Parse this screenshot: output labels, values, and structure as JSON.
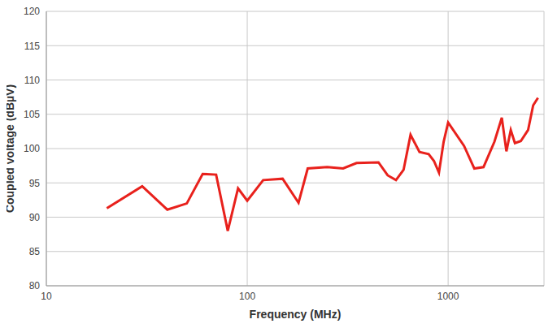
{
  "chart_data": {
    "type": "line",
    "x_label": "Frequency (MHz)",
    "y_label": "Coupled voltage (dBµV)",
    "x": [
      20,
      30,
      40,
      50,
      60,
      70,
      80,
      90,
      100,
      120,
      150,
      180,
      200,
      250,
      300,
      350,
      450,
      500,
      550,
      600,
      650,
      720,
      800,
      850,
      900,
      950,
      1000,
      1200,
      1350,
      1500,
      1700,
      1850,
      1950,
      2050,
      2150,
      2300,
      2500,
      2650,
      2800
    ],
    "values": [
      91.3,
      94.5,
      91.1,
      92.0,
      96.3,
      96.2,
      88.0,
      94.2,
      92.4,
      95.4,
      95.6,
      92.1,
      97.1,
      97.3,
      97.1,
      97.9,
      98.0,
      96.1,
      95.4,
      96.9,
      102.0,
      99.5,
      99.2,
      98.2,
      96.5,
      101.0,
      103.8,
      100.4,
      97.1,
      97.3,
      101.0,
      104.5,
      99.6,
      102.7,
      100.8,
      101.1,
      102.7,
      106.3,
      107.4
    ],
    "color": "#e8211c",
    "log": "x",
    "xlim": [
      10,
      3000
    ],
    "xticks": [
      10,
      100,
      1000
    ],
    "ylim": [
      80,
      120
    ],
    "yticks": [
      80,
      85,
      90,
      95,
      100,
      105,
      110,
      115,
      120
    ],
    "grid": true
  }
}
